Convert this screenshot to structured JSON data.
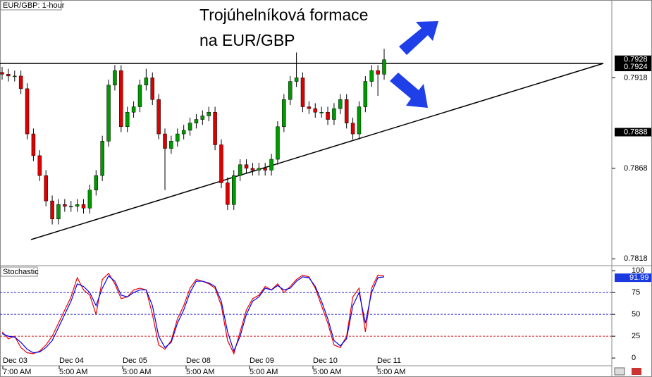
{
  "chart_data": [
    {
      "type": "candlestick",
      "label": "EUR/GBP: 1-hour",
      "title": [
        "Trojúhelníková formace",
        "na EUR/GBP"
      ],
      "up_color": "#009900",
      "down_color": "#dd0000",
      "ylim": [
        0.7815,
        0.7961
      ],
      "yticks": [
        0.7918,
        0.7868,
        0.7818
      ],
      "price_markers": [
        0.7928,
        0.7924,
        0.7888
      ],
      "open": [
        0.7921,
        0.792,
        0.7919,
        0.7919,
        0.7912,
        0.7887,
        0.7875,
        0.7864,
        0.785,
        0.784,
        0.7848,
        0.7847,
        0.7847,
        0.7848,
        0.7846,
        0.7856,
        0.7864,
        0.7883,
        0.7914,
        0.7922,
        0.7891,
        0.7899,
        0.7902,
        0.7914,
        0.7918,
        0.7906,
        0.7887,
        0.7879,
        0.7883,
        0.7887,
        0.7889,
        0.7893,
        0.7895,
        0.7897,
        0.7899,
        0.7881,
        0.786,
        0.7848,
        0.7864,
        0.787,
        0.7868,
        0.7867,
        0.7868,
        0.7867,
        0.7873,
        0.7891,
        0.7906,
        0.7916,
        0.7918,
        0.7902,
        0.7901,
        0.7899,
        0.7899,
        0.7895,
        0.7901,
        0.7906,
        0.7893,
        0.7887,
        0.7902,
        0.7916,
        0.7922,
        0.792
      ],
      "high": [
        0.7924,
        0.7923,
        0.7922,
        0.7922,
        0.7915,
        0.789,
        0.7878,
        0.7867,
        0.7853,
        0.7851,
        0.7851,
        0.785,
        0.7851,
        0.7851,
        0.7859,
        0.7867,
        0.7886,
        0.7917,
        0.7925,
        0.7925,
        0.7902,
        0.7905,
        0.7917,
        0.7923,
        0.7921,
        0.7909,
        0.789,
        0.7886,
        0.789,
        0.7892,
        0.7896,
        0.7898,
        0.79,
        0.7902,
        0.7902,
        0.7884,
        0.7863,
        0.7867,
        0.7873,
        0.7873,
        0.7871,
        0.7871,
        0.7871,
        0.7876,
        0.7894,
        0.7909,
        0.7919,
        0.7932,
        0.7921,
        0.7905,
        0.7904,
        0.7902,
        0.7902,
        0.7904,
        0.7909,
        0.7909,
        0.7896,
        0.7905,
        0.7919,
        0.7925,
        0.7925,
        0.7934
      ],
      "low": [
        0.7917,
        0.7916,
        0.7916,
        0.7909,
        0.7884,
        0.7872,
        0.7861,
        0.7847,
        0.7837,
        0.7837,
        0.7844,
        0.7844,
        0.7844,
        0.7843,
        0.7843,
        0.7853,
        0.7861,
        0.788,
        0.7911,
        0.7888,
        0.7888,
        0.7896,
        0.7899,
        0.7911,
        0.7903,
        0.7884,
        0.7856,
        0.7876,
        0.788,
        0.7884,
        0.7886,
        0.789,
        0.7892,
        0.7894,
        0.7878,
        0.7857,
        0.7845,
        0.7845,
        0.7861,
        0.7865,
        0.7864,
        0.7864,
        0.7864,
        0.7864,
        0.787,
        0.7888,
        0.7903,
        0.7913,
        0.7899,
        0.7898,
        0.7896,
        0.7896,
        0.7892,
        0.7892,
        0.7898,
        0.789,
        0.7884,
        0.7884,
        0.7899,
        0.7913,
        0.7908,
        0.7917
      ],
      "close": [
        0.792,
        0.7919,
        0.7919,
        0.7912,
        0.7887,
        0.7875,
        0.7864,
        0.785,
        0.784,
        0.7848,
        0.7847,
        0.7847,
        0.7848,
        0.7846,
        0.7856,
        0.7864,
        0.7883,
        0.7914,
        0.7922,
        0.7891,
        0.7899,
        0.7902,
        0.7914,
        0.7918,
        0.7906,
        0.7887,
        0.7879,
        0.7883,
        0.7887,
        0.7889,
        0.7893,
        0.7895,
        0.7897,
        0.7899,
        0.7881,
        0.786,
        0.7848,
        0.7864,
        0.787,
        0.7868,
        0.7867,
        0.7868,
        0.7867,
        0.7873,
        0.7891,
        0.7906,
        0.7916,
        0.7918,
        0.7902,
        0.7901,
        0.7899,
        0.7899,
        0.7895,
        0.7901,
        0.7906,
        0.7893,
        0.7887,
        0.7902,
        0.7916,
        0.7922,
        0.792,
        0.7928
      ]
    },
    {
      "type": "line",
      "label": "Stochastic",
      "ylim": [
        -8,
        105
      ],
      "yticks": [
        100,
        75,
        50,
        25,
        0
      ],
      "levels": [
        {
          "value": 75,
          "color": "#2222cc"
        },
        {
          "value": 50,
          "color": "#2222cc"
        },
        {
          "value": 25,
          "color": "#cc2222"
        }
      ],
      "marker": 91.99,
      "series": [
        {
          "color": "#ee0000",
          "values": [
            30,
            22,
            25,
            12,
            6,
            5,
            8,
            15,
            25,
            40,
            55,
            70,
            92,
            78,
            72,
            50,
            90,
            97,
            85,
            68,
            70,
            78,
            80,
            78,
            50,
            15,
            10,
            20,
            45,
            60,
            80,
            90,
            88,
            85,
            80,
            60,
            20,
            5,
            30,
            55,
            68,
            72,
            82,
            78,
            85,
            75,
            82,
            90,
            95,
            93,
            80,
            60,
            40,
            15,
            12,
            25,
            70,
            80,
            30,
            80,
            95,
            94
          ]
        },
        {
          "color": "#0000ee",
          "values": [
            28,
            25,
            24,
            18,
            10,
            6,
            7,
            12,
            20,
            35,
            50,
            65,
            85,
            82,
            75,
            60,
            80,
            94,
            88,
            72,
            70,
            75,
            78,
            78,
            60,
            25,
            12,
            18,
            40,
            55,
            75,
            88,
            88,
            86,
            82,
            65,
            30,
            8,
            25,
            50,
            65,
            70,
            80,
            78,
            83,
            78,
            80,
            88,
            93,
            92,
            82,
            65,
            45,
            20,
            14,
            22,
            60,
            75,
            40,
            75,
            92,
            93
          ]
        }
      ],
      "xtick_dates": [
        "Dec 03",
        "Dec 04",
        "Dec 05",
        "Dec 08",
        "Dec 09",
        "Dec 10",
        "Dec 11"
      ],
      "xtick_times": [
        "7:00 AM",
        "5:00 AM",
        "5:00 AM",
        "5:00 AM",
        "5:00 AM",
        "5:00 AM",
        "5:00 AM"
      ]
    }
  ]
}
